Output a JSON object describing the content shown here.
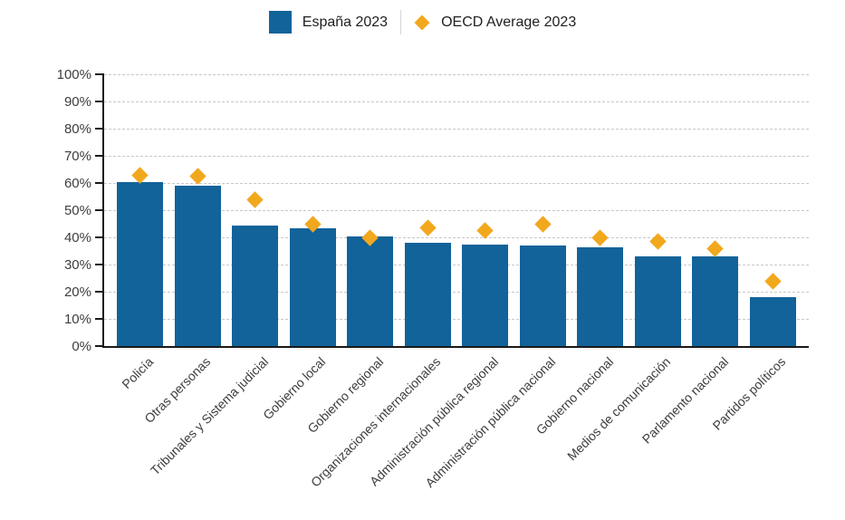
{
  "legend": {
    "items": [
      {
        "label": "España 2023",
        "marker": "square"
      },
      {
        "label": "OECD Average 2023",
        "marker": "diamond"
      }
    ]
  },
  "colors": {
    "bar_blue": "#12639A",
    "oecd_gold": "#F2A81D",
    "gridline": "#c8c8c8",
    "axis": "#1a1a1a",
    "tick_text": "#3d3d3d"
  },
  "chart_data": {
    "type": "bar",
    "title": "",
    "categories": [
      "Policía",
      "Otras personas",
      "Tribunales y Sistema judicial",
      "Gobierno local",
      "Gobierno regional",
      "Organizaciones internacionales",
      "Administración pública regional",
      "Administración pública nacional",
      "Gobierno nacional",
      "Medios de comunicación",
      "Parlamento nacional",
      "Partidos políticos"
    ],
    "series": [
      {
        "name": "España 2023",
        "type": "bar",
        "color": "#12639A",
        "values": [
          60.5,
          59,
          44.5,
          43.5,
          40.5,
          38,
          37.5,
          37,
          36.5,
          33,
          33,
          18
        ]
      },
      {
        "name": "OECD Average 2023",
        "type": "point-diamond",
        "color": "#F2A81D",
        "values": [
          63,
          62.5,
          54,
          45,
          40,
          43.5,
          42.5,
          45,
          40,
          38.5,
          36,
          24
        ]
      }
    ],
    "xlabel": "",
    "ylabel": "",
    "ylim": [
      0,
      100
    ],
    "ytick_step": 10,
    "ytick_suffix": "%",
    "grid": "horizontal-dashed",
    "legend_position": "top-center"
  }
}
